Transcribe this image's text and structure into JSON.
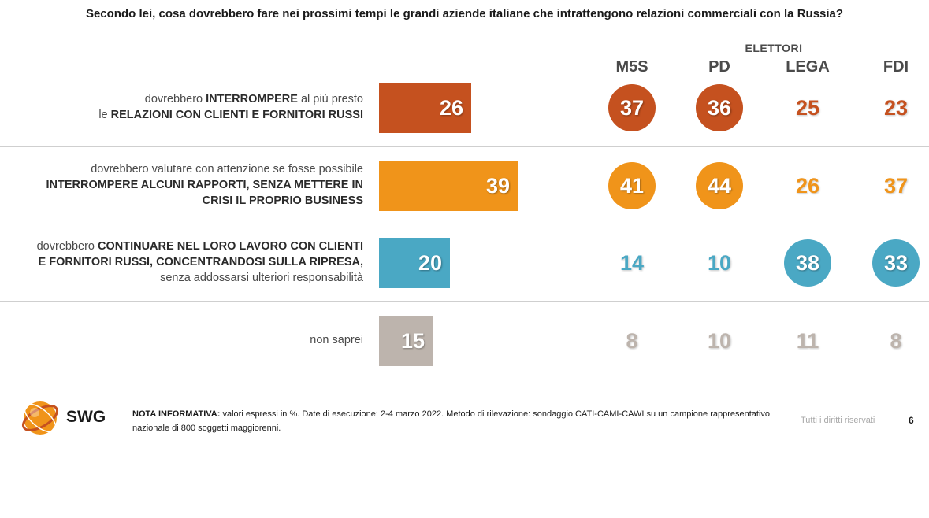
{
  "title": "Secondo lei, cosa dovrebbero fare nei prossimi tempi le grandi aziende italiane che intrattengono relazioni commerciali con la Russia?",
  "group_label": "ELETTORI",
  "columns": [
    "M5S",
    "PD",
    "LEGA",
    "FDI"
  ],
  "rows": [
    {
      "lines": [
        [
          {
            "t": "dovrebbero ",
            "b": false
          },
          {
            "t": "INTERROMPERE",
            "b": true
          },
          {
            "t": " al più presto",
            "b": false
          }
        ],
        [
          {
            "t": "le ",
            "b": false
          },
          {
            "t": "RELAZIONI CON CLIENTI E FORNITORI RUSSI",
            "b": true
          }
        ]
      ]
    },
    {
      "lines": [
        [
          {
            "t": "dovrebbero valutare con attenzione se fosse possibile",
            "b": false
          }
        ],
        [
          {
            "t": "INTERROMPERE ALCUNI RAPPORTI, SENZA METTERE IN",
            "b": true
          }
        ],
        [
          {
            "t": "CRISI IL PROPRIO BUSINESS",
            "b": true
          }
        ]
      ]
    },
    {
      "lines": [
        [
          {
            "t": "dovrebbero ",
            "b": false
          },
          {
            "t": "CONTINUARE NEL LORO LAVORO CON CLIENTI",
            "b": true
          }
        ],
        [
          {
            "t": "E FORNITORI RUSSI, CONCENTRANDOSI SULLA RIPRESA,",
            "b": true
          }
        ],
        [
          {
            "t": "senza addossarsi ulteriori responsabilità",
            "b": false
          }
        ]
      ]
    },
    {
      "lines": [
        [
          {
            "t": "non saprei",
            "b": false
          }
        ]
      ]
    }
  ],
  "chart_data": {
    "type": "bar",
    "orientation": "horizontal",
    "title": "Secondo lei, cosa dovrebbero fare nei prossimi tempi le grandi aziende italiane che intrattengono relazioni commerciali con la Russia?",
    "unit": "%",
    "categories": [
      "dovrebbero INTERROMPERE al più presto le RELAZIONI CON CLIENTI E FORNITORI RUSSI",
      "dovrebbero valutare con attenzione se fosse possibile INTERROMPERE ALCUNI RAPPORTI, SENZA METTERE IN CRISI IL PROPRIO BUSINESS",
      "dovrebbero CONTINUARE NEL LORO LAVORO CON CLIENTI E FORNITORI RUSSI, CONCENTRANDOSI SULLA RIPRESA, senza addossarsi ulteriori responsabilità",
      "non saprei"
    ],
    "values": [
      26,
      39,
      20,
      15
    ],
    "colors": [
      "#c5511f",
      "#f0941a",
      "#4aa8c4",
      "#bdb4ad"
    ],
    "xlim": [
      0,
      100
    ],
    "breakdown": {
      "group": "ELETTORI",
      "series": [
        {
          "name": "M5S",
          "values": [
            37,
            41,
            14,
            8
          ],
          "highlighted": [
            true,
            true,
            false,
            false
          ]
        },
        {
          "name": "PD",
          "values": [
            36,
            44,
            10,
            10
          ],
          "highlighted": [
            true,
            true,
            false,
            false
          ]
        },
        {
          "name": "LEGA",
          "values": [
            25,
            26,
            38,
            11
          ],
          "highlighted": [
            false,
            false,
            true,
            false
          ]
        },
        {
          "name": "FDI",
          "values": [
            23,
            37,
            33,
            8
          ],
          "highlighted": [
            false,
            false,
            true,
            false
          ]
        }
      ]
    }
  },
  "footer": {
    "logo_text": "SWG",
    "note_label": "NOTA INFORMATIVA:",
    "note_text": " valori espressi in %. Date di esecuzione: 2-4 marzo 2022. Metodo di rilevazione: sondaggio CATI-CAMI-CAWI su un campione rappresentativo nazionale di 800 soggetti maggiorenni.",
    "rights": "Tutti i diritti riservati",
    "page_number": "6"
  }
}
